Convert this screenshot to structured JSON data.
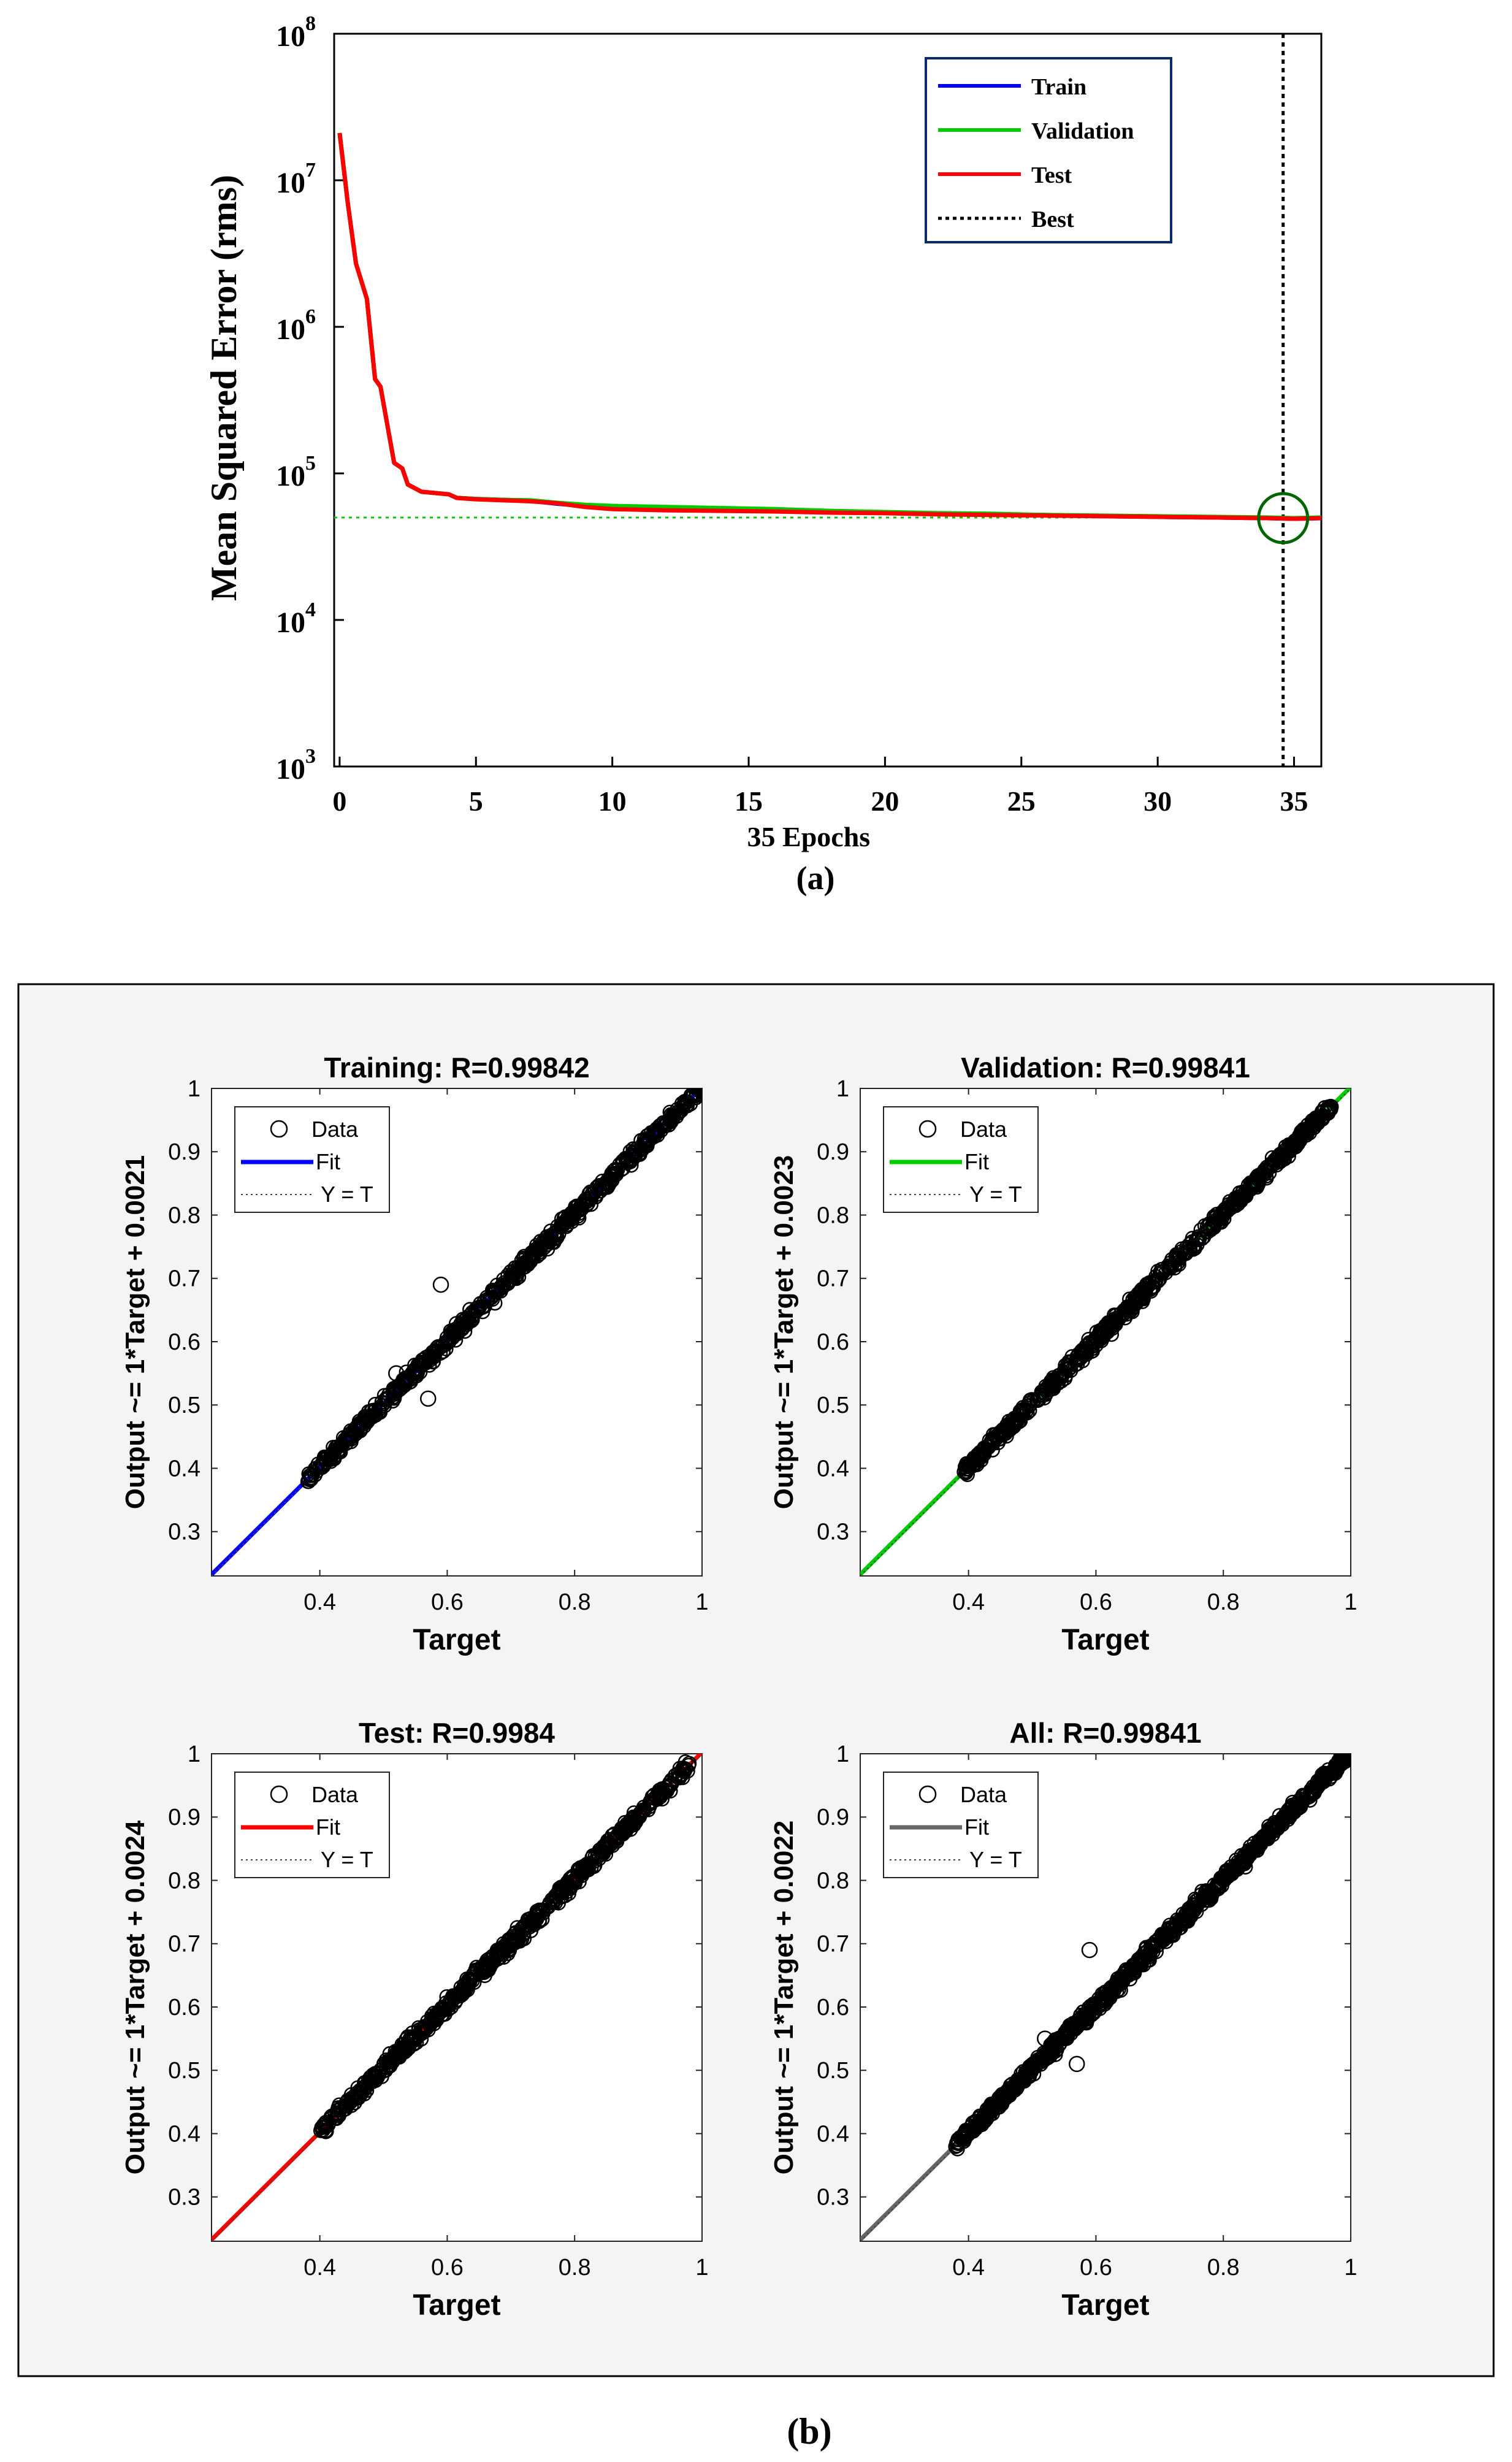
{
  "panel_a_label": "(a)",
  "panel_b_label": "(b)",
  "colors": {
    "train": "#0000ff",
    "validation": "#00cc00",
    "test": "#ff0000",
    "best": "#000000",
    "best_marker": "#006400",
    "all_fit": "#666666",
    "panel_bg": "#f4f4f4"
  },
  "chart_data": [
    {
      "id": "performance",
      "type": "line",
      "yscale": "log",
      "title": "",
      "xlabel": "35 Epochs",
      "ylabel": "Mean Squared Error (rms)",
      "xlim": [
        -0.2,
        36
      ],
      "ylim": [
        1000,
        100000000
      ],
      "xticks": [
        0,
        5,
        10,
        15,
        20,
        25,
        30,
        35
      ],
      "yticks": [
        {
          "value": 1000,
          "base": "10",
          "exp": "3"
        },
        {
          "value": 10000,
          "base": "10",
          "exp": "4"
        },
        {
          "value": 100000,
          "base": "10",
          "exp": "5"
        },
        {
          "value": 1000000,
          "base": "10",
          "exp": "6"
        },
        {
          "value": 10000000,
          "base": "10",
          "exp": "7"
        },
        {
          "value": 100000000,
          "base": "10",
          "exp": "8"
        }
      ],
      "legend": [
        {
          "label": "Train",
          "style": "solid",
          "series": "train"
        },
        {
          "label": "Validation",
          "style": "solid",
          "series": "validation"
        },
        {
          "label": "Test",
          "style": "solid",
          "series": "test"
        },
        {
          "label": "Best",
          "style": "dotted",
          "series": "best"
        }
      ],
      "best_epoch": 34.6,
      "goal": 50000,
      "series": [
        {
          "name": "Train",
          "key": "train",
          "x": [
            0,
            0.3,
            0.6,
            1,
            1.3,
            1.5,
            2,
            2.3,
            2.5,
            3,
            3.5,
            4,
            4.3,
            5,
            6,
            7,
            8,
            9,
            10,
            12,
            14,
            16,
            18,
            20,
            22,
            24,
            26,
            28,
            30,
            32,
            34,
            35,
            36
          ],
          "y": [
            21000000,
            7000000,
            2700000,
            1550000,
            440000,
            390000,
            118000,
            108000,
            84000,
            75000,
            73500,
            72000,
            68000,
            67000,
            66000,
            65000,
            62000,
            60000,
            58000,
            57500,
            57000,
            56000,
            55000,
            54000,
            53000,
            52500,
            52000,
            51000,
            50500,
            50000,
            49500,
            49000,
            49500
          ]
        },
        {
          "name": "Validation",
          "key": "validation",
          "x": [
            0,
            0.3,
            0.6,
            1,
            1.3,
            1.5,
            2,
            2.3,
            2.5,
            3,
            3.5,
            4,
            4.3,
            5,
            6,
            7,
            8,
            9,
            10,
            12,
            14,
            16,
            18,
            20,
            22,
            24,
            26,
            28,
            30,
            32,
            34,
            35,
            36
          ],
          "y": [
            21000000,
            7000000,
            2700000,
            1550000,
            440000,
            390000,
            118000,
            108000,
            84000,
            75000,
            73500,
            72000,
            68000,
            67000,
            66000,
            65500,
            63000,
            61000,
            60000,
            59000,
            58000,
            57000,
            55500,
            54500,
            53500,
            53000,
            52000,
            51500,
            51000,
            50500,
            50000,
            49500,
            50000
          ]
        },
        {
          "name": "Test",
          "key": "test",
          "x": [
            0,
            0.3,
            0.6,
            1,
            1.3,
            1.5,
            2,
            2.3,
            2.5,
            3,
            3.5,
            4,
            4.3,
            5,
            6,
            7,
            8,
            9,
            10,
            12,
            14,
            16,
            18,
            20,
            22,
            24,
            26,
            28,
            30,
            32,
            34,
            35,
            36
          ],
          "y": [
            21000000,
            7000000,
            2700000,
            1550000,
            440000,
            390000,
            118000,
            108000,
            84000,
            75000,
            73500,
            72000,
            68000,
            66500,
            65500,
            64500,
            62500,
            59000,
            57000,
            56000,
            55500,
            55000,
            54000,
            53500,
            52500,
            52000,
            51500,
            51000,
            50500,
            50000,
            49500,
            49000,
            49500
          ]
        }
      ]
    },
    {
      "id": "training",
      "type": "scatter",
      "title": "Training: R=0.99842",
      "xlabel": "Target",
      "ylabel": "Output ~= 1*Target + 0.0021",
      "xlim": [
        0.23,
        1.0
      ],
      "ylim": [
        0.23,
        1.0
      ],
      "xticks": [
        "0.4",
        "0.6",
        "0.8",
        "1"
      ],
      "yticks": [
        "0.3",
        "0.4",
        "0.5",
        "0.6",
        "0.7",
        "0.8",
        "0.9",
        "1"
      ],
      "fit": {
        "slope": 1,
        "intercept": 0.0021,
        "color_key": "train"
      },
      "data_range": [
        0.38,
        1.0
      ],
      "outliers": [
        [
          0.59,
          0.69
        ],
        [
          0.52,
          0.55
        ],
        [
          0.57,
          0.51
        ]
      ],
      "legend": [
        {
          "label": "Data"
        },
        {
          "label": "Fit"
        },
        {
          "label": "Y = T"
        }
      ]
    },
    {
      "id": "validation",
      "type": "scatter",
      "title": "Validation: R=0.99841",
      "xlabel": "Target",
      "ylabel": "Output ~= 1*Target + 0.0023",
      "xlim": [
        0.23,
        1.0
      ],
      "ylim": [
        0.23,
        1.0
      ],
      "xticks": [
        "0.4",
        "0.6",
        "0.8",
        "1"
      ],
      "yticks": [
        "0.3",
        "0.4",
        "0.5",
        "0.6",
        "0.7",
        "0.8",
        "0.9",
        "1"
      ],
      "fit": {
        "slope": 1,
        "intercept": 0.0023,
        "color_key": "validation"
      },
      "data_range": [
        0.39,
        0.97
      ],
      "outliers": [],
      "legend": [
        {
          "label": "Data"
        },
        {
          "label": "Fit"
        },
        {
          "label": "Y = T"
        }
      ]
    },
    {
      "id": "test",
      "type": "scatter",
      "title": "Test: R=0.9984",
      "xlabel": "Target",
      "ylabel": "Output ~= 1*Target + 0.0024",
      "xlim": [
        0.23,
        1.0
      ],
      "ylim": [
        0.23,
        1.0
      ],
      "xticks": [
        "0.4",
        "0.6",
        "0.8",
        "1"
      ],
      "yticks": [
        "0.3",
        "0.4",
        "0.5",
        "0.6",
        "0.7",
        "0.8",
        "0.9",
        "1"
      ],
      "fit": {
        "slope": 1,
        "intercept": 0.0024,
        "color_key": "test"
      },
      "data_range": [
        0.4,
        0.98
      ],
      "outliers": [],
      "legend": [
        {
          "label": "Data"
        },
        {
          "label": "Fit"
        },
        {
          "label": "Y = T"
        }
      ]
    },
    {
      "id": "all",
      "type": "scatter",
      "title": "All: R=0.99841",
      "xlabel": "Target",
      "ylabel": "Output ~= 1*Target + 0.0022",
      "xlim": [
        0.23,
        1.0
      ],
      "ylim": [
        0.23,
        1.0
      ],
      "xticks": [
        "0.4",
        "0.6",
        "0.8",
        "1"
      ],
      "yticks": [
        "0.3",
        "0.4",
        "0.5",
        "0.6",
        "0.7",
        "0.8",
        "0.9",
        "1"
      ],
      "fit": {
        "slope": 1,
        "intercept": 0.0022,
        "color_key": "all_fit"
      },
      "data_range": [
        0.38,
        1.0
      ],
      "outliers": [
        [
          0.59,
          0.69
        ],
        [
          0.52,
          0.55
        ],
        [
          0.57,
          0.51
        ]
      ],
      "legend": [
        {
          "label": "Data"
        },
        {
          "label": "Fit"
        },
        {
          "label": "Y = T"
        }
      ]
    }
  ]
}
